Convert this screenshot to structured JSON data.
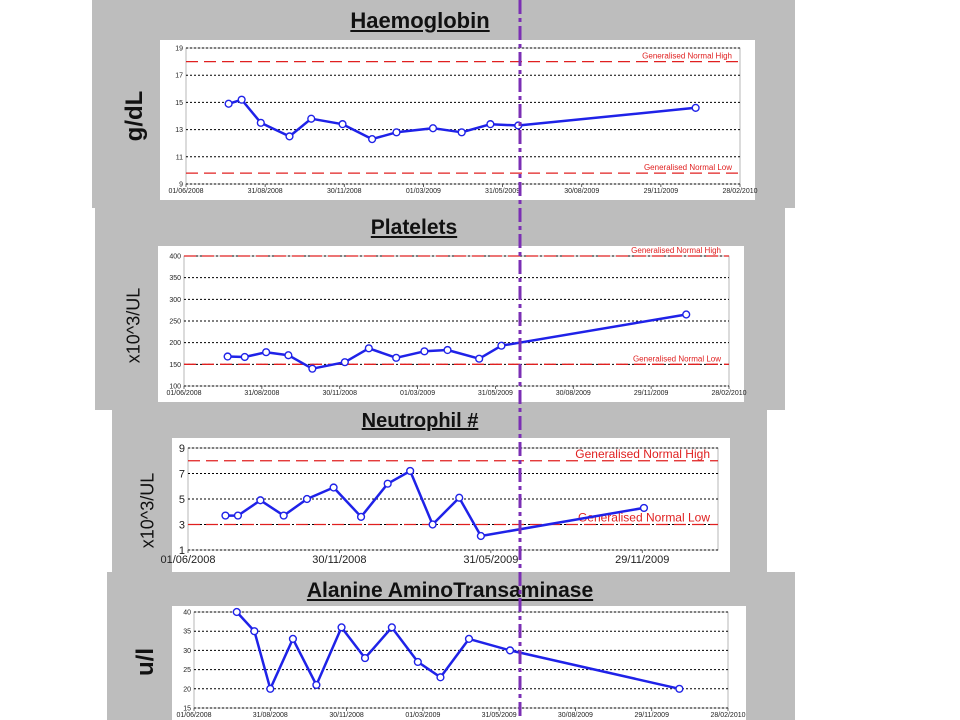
{
  "chart_data": [
    {
      "type": "line",
      "title": "Haemoglobin",
      "ylabel": "g/dL",
      "ylim": [
        9,
        19
      ],
      "yticks": [
        9,
        11,
        13,
        15,
        17,
        19
      ],
      "xlim": [
        "2008-06-01",
        "2010-02-28"
      ],
      "xticks": [
        "01/06/2008",
        "31/08/2008",
        "30/11/2008",
        "01/03/2009",
        "31/05/2009",
        "30/08/2009",
        "29/11/2009",
        "28/02/2010"
      ],
      "reference_lines": [
        {
          "name": "Generalised Normal High",
          "value": 18
        },
        {
          "name": "Generalised Normal Low",
          "value": 9.8
        }
      ],
      "series": [
        {
          "x": [
            "2008-07-20",
            "2008-08-04",
            "2008-08-26",
            "2008-09-28",
            "2008-10-23",
            "2008-11-28",
            "2009-01-01",
            "2009-01-29",
            "2009-03-12",
            "2009-04-14",
            "2009-05-17",
            "2009-06-18",
            "2010-01-08"
          ],
          "values": [
            14.9,
            15.2,
            13.5,
            12.5,
            13.8,
            13.4,
            12.3,
            12.8,
            13.1,
            12.8,
            13.4,
            13.3,
            14.6
          ]
        }
      ],
      "grid": true
    },
    {
      "type": "line",
      "title": "Platelets",
      "ylabel": "x10^3/UL",
      "ylim": [
        100,
        400
      ],
      "yticks": [
        100,
        150,
        200,
        250,
        300,
        350,
        400
      ],
      "xlim": [
        "2008-06-01",
        "2010-02-28"
      ],
      "xticks": [
        "01/06/2008",
        "31/08/2008",
        "30/11/2008",
        "01/03/2009",
        "31/05/2009",
        "30/08/2009",
        "29/11/2009",
        "28/02/2010"
      ],
      "reference_lines": [
        {
          "name": "Generalised Normal High",
          "value": 400
        },
        {
          "name": "Generalised Normal Low",
          "value": 150
        }
      ],
      "series": [
        {
          "x": [
            "2008-07-22",
            "2008-08-11",
            "2008-09-05",
            "2008-10-01",
            "2008-10-29",
            "2008-12-06",
            "2009-01-03",
            "2009-02-04",
            "2009-03-09",
            "2009-04-05",
            "2009-05-12",
            "2009-06-07",
            "2010-01-09"
          ],
          "values": [
            168,
            167,
            178,
            171,
            140,
            155,
            187,
            165,
            180,
            183,
            163,
            193,
            265
          ]
        }
      ],
      "grid": true
    },
    {
      "type": "line",
      "title": "Neutrophil #",
      "ylabel": "x10^3/UL",
      "ylim": [
        1,
        9
      ],
      "yticks": [
        1,
        3,
        5,
        7,
        9
      ],
      "xlim": [
        "2008-06-01",
        "2010-02-28"
      ],
      "xticks": [
        "01/06/2008",
        "30/11/2008",
        "31/05/2009",
        "29/11/2009"
      ],
      "reference_lines": [
        {
          "name": "Generalised Normal High",
          "value": 8
        },
        {
          "name": "Generalised Normal Low",
          "value": 3
        }
      ],
      "series": [
        {
          "x": [
            "2008-07-16",
            "2008-07-31",
            "2008-08-27",
            "2008-09-24",
            "2008-10-22",
            "2008-11-23",
            "2008-12-26",
            "2009-01-27",
            "2009-02-23",
            "2009-03-22",
            "2009-04-23",
            "2009-05-19",
            "2009-12-01"
          ],
          "values": [
            3.7,
            3.7,
            4.9,
            3.7,
            5.0,
            5.9,
            3.6,
            6.2,
            7.2,
            3.0,
            5.1,
            2.1,
            4.3
          ]
        }
      ],
      "grid": true
    },
    {
      "type": "line",
      "title": "Alanine AminoTransaminase",
      "ylabel": "u/l",
      "ylim": [
        15,
        40
      ],
      "yticks": [
        15,
        20,
        25,
        30,
        35,
        40
      ],
      "xlim": [
        "2008-06-01",
        "2010-02-28"
      ],
      "xticks": [
        "01/06/2008",
        "31/08/2008",
        "30/11/2008",
        "01/03/2009",
        "31/05/2009",
        "30/08/2009",
        "29/11/2009",
        "28/02/2010"
      ],
      "series": [
        {
          "x": [
            "2008-07-22",
            "2008-08-12",
            "2008-08-31",
            "2008-09-27",
            "2008-10-25",
            "2008-11-24",
            "2008-12-22",
            "2009-01-23",
            "2009-02-23",
            "2009-03-22",
            "2009-04-25",
            "2009-06-13",
            "2010-01-01"
          ],
          "values": [
            40,
            35,
            20,
            33,
            21,
            36,
            28,
            36,
            27,
            23,
            33,
            30,
            20
          ]
        }
      ],
      "grid": true
    }
  ],
  "colors": {
    "series": "#1f22e8",
    "reference": "#e02020",
    "divider": "#7b2fb4",
    "panel": "#bdbdbd",
    "grid": "#000000"
  }
}
